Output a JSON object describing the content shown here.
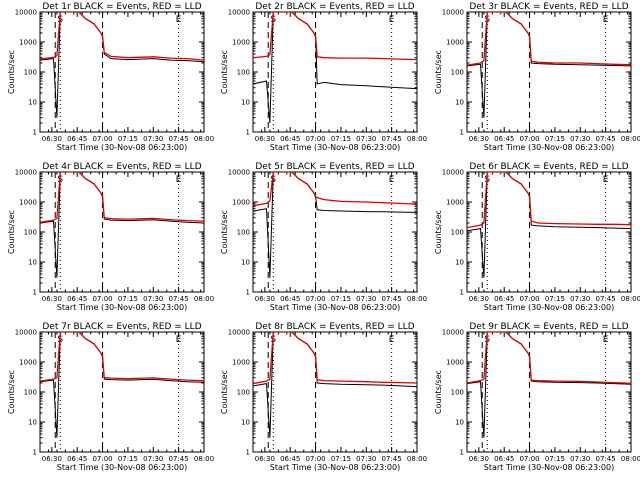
{
  "window": {
    "background": "#ffffff"
  },
  "styles": {
    "events_color": "#000000",
    "lld_color": "#e00000"
  },
  "chart_data": {
    "type": "line",
    "layout": "3x3 grid",
    "xlabel": "Start Time (30-Nov-08 06:23:00)",
    "ylabel": "Counts/sec",
    "yscale": "log",
    "ylim": [
      1,
      10000
    ],
    "xlim": [
      "06:23",
      "08:00"
    ],
    "x_ticks": [
      "06:30",
      "06:45",
      "07:00",
      "07:15",
      "07:30",
      "07:45",
      "08:00"
    ],
    "y_ticks": [
      "1",
      "10",
      "100",
      "1000",
      "10000"
    ],
    "legend_text": "BLACK = Events, RED = LLD",
    "series_names": [
      "Events",
      "LLD"
    ],
    "markers": [
      "S",
      "E"
    ],
    "panels": [
      {
        "title": "Det 1r BLACK = Events, RED = LLD",
        "xlabel": "Start Time (30-Nov-08 06:23:00)",
        "x": [
          "06:23",
          "06:31",
          "06:33",
          "06:35",
          "06:37",
          "06:43",
          "06:46",
          "06:50",
          "06:55",
          "06:59",
          "07:00",
          "07:01",
          "07:05",
          "07:15",
          "07:30",
          "07:40",
          "07:50",
          "08:00"
        ],
        "series": [
          {
            "name": "Events",
            "values": [
              250,
              280,
              3,
              10000,
              10000,
              10000,
              10000,
              6000,
              4000,
              2000,
              1500,
              400,
              280,
              260,
              280,
              250,
              240,
              220
            ]
          },
          {
            "name": "LLD",
            "values": [
              270,
              310,
              350,
              10000,
              10000,
              10000,
              10000,
              6000,
              4000,
              2000,
              1500,
              450,
              330,
              300,
              320,
              290,
              280,
              250
            ]
          }
        ]
      },
      {
        "title": "Det 2r BLACK = Events, RED = LLD",
        "xlabel": "Start Time (30-Nov-08 06:23:00)",
        "x": [
          "06:23",
          "06:31",
          "06:33",
          "06:35",
          "06:37",
          "06:43",
          "06:46",
          "06:50",
          "06:55",
          "06:59",
          "07:00",
          "07:01",
          "07:05",
          "07:15",
          "07:30",
          "07:40",
          "07:50",
          "08:00"
        ],
        "series": [
          {
            "name": "Events",
            "values": [
              40,
              50,
              2,
              10000,
              10000,
              10000,
              10000,
              6000,
              4000,
              2000,
              1500,
              40,
              45,
              38,
              35,
              32,
              30,
              28
            ]
          },
          {
            "name": "LLD",
            "values": [
              300,
              330,
              380,
              10000,
              10000,
              10000,
              10000,
              6000,
              4000,
              2000,
              1500,
              320,
              300,
              290,
              290,
              280,
              270,
              260
            ]
          }
        ]
      },
      {
        "title": "Det 3r BLACK = Events, RED = LLD",
        "xlabel": "Start Time (30-Nov-08 06:23:00)",
        "x": [
          "06:23",
          "06:31",
          "06:33",
          "06:35",
          "06:37",
          "06:43",
          "06:46",
          "06:50",
          "06:55",
          "06:59",
          "07:00",
          "07:01",
          "07:05",
          "07:15",
          "07:30",
          "07:40",
          "07:50",
          "08:00"
        ],
        "series": [
          {
            "name": "Events",
            "values": [
              160,
              180,
              3,
              10000,
              10000,
              10000,
              10000,
              6000,
              4000,
              2000,
              1500,
              200,
              190,
              180,
              175,
              170,
              165,
              160
            ]
          },
          {
            "name": "LLD",
            "values": [
              170,
              200,
              240,
              10000,
              10000,
              10000,
              10000,
              6000,
              4000,
              2000,
              1500,
              230,
              210,
              200,
              200,
              190,
              180,
              175
            ]
          }
        ]
      },
      {
        "title": "Det 4r BLACK = Events, RED = LLD",
        "xlabel": "Start Time (30-Nov-08 06:23:00)",
        "x": [
          "06:23",
          "06:31",
          "06:33",
          "06:35",
          "06:37",
          "06:43",
          "06:46",
          "06:50",
          "06:55",
          "06:59",
          "07:00",
          "07:01",
          "07:05",
          "07:15",
          "07:30",
          "07:40",
          "07:50",
          "08:00"
        ],
        "series": [
          {
            "name": "Events",
            "values": [
              200,
              230,
              3,
              10000,
              10000,
              10000,
              10000,
              6000,
              4000,
              2000,
              1500,
              270,
              250,
              240,
              255,
              230,
              210,
              200
            ]
          },
          {
            "name": "LLD",
            "values": [
              210,
              250,
              280,
              10000,
              10000,
              10000,
              10000,
              6000,
              4000,
              2000,
              1500,
              300,
              280,
              270,
              285,
              260,
              240,
              230
            ]
          }
        ]
      },
      {
        "title": "Det 5r BLACK = Events, RED = LLD",
        "xlabel": "Start Time (30-Nov-08 06:23:00)",
        "x": [
          "06:23",
          "06:31",
          "06:33",
          "06:35",
          "06:37",
          "06:43",
          "06:46",
          "06:50",
          "06:55",
          "06:59",
          "07:00",
          "07:01",
          "07:05",
          "07:15",
          "07:30",
          "07:40",
          "07:50",
          "08:00"
        ],
        "series": [
          {
            "name": "Events",
            "values": [
              500,
              600,
              3,
              10000,
              10000,
              10000,
              10000,
              6000,
              4000,
              2000,
              1500,
              550,
              520,
              500,
              480,
              470,
              460,
              450
            ]
          },
          {
            "name": "LLD",
            "values": [
              750,
              900,
              1100,
              10000,
              10000,
              10000,
              10000,
              6000,
              4000,
              2000,
              1500,
              1400,
              1200,
              1050,
              1000,
              950,
              900,
              850
            ]
          }
        ]
      },
      {
        "title": "Det 6r BLACK = Events, RED = LLD",
        "xlabel": "Start Time (30-Nov-08 06:23:00)",
        "x": [
          "06:23",
          "06:31",
          "06:33",
          "06:35",
          "06:37",
          "06:43",
          "06:46",
          "06:50",
          "06:55",
          "06:59",
          "07:00",
          "07:01",
          "07:05",
          "07:15",
          "07:30",
          "07:40",
          "07:50",
          "08:00"
        ],
        "series": [
          {
            "name": "Events",
            "values": [
              110,
              130,
              3,
              10000,
              10000,
              10000,
              10000,
              6000,
              4000,
              2000,
              1500,
              170,
              160,
              150,
              145,
              140,
              135,
              130
            ]
          },
          {
            "name": "LLD",
            "values": [
              140,
              170,
              200,
              10000,
              10000,
              10000,
              10000,
              6000,
              4000,
              2000,
              1500,
              230,
              200,
              190,
              185,
              180,
              180,
              175
            ]
          }
        ]
      },
      {
        "title": "Det 7r BLACK = Events, RED = LLD",
        "xlabel": "Start Time (30-Nov-08 06:23:00)",
        "x": [
          "06:23",
          "06:31",
          "06:33",
          "06:35",
          "06:37",
          "06:43",
          "06:46",
          "06:50",
          "06:55",
          "06:59",
          "07:00",
          "07:01",
          "07:05",
          "07:15",
          "07:30",
          "07:40",
          "07:50",
          "08:00"
        ],
        "series": [
          {
            "name": "Events",
            "values": [
              220,
              250,
              3,
              10000,
              10000,
              10000,
              10000,
              6000,
              4000,
              2000,
              1500,
              270,
              260,
              250,
              265,
              240,
              220,
              210
            ]
          },
          {
            "name": "LLD",
            "values": [
              230,
              270,
              300,
              10000,
              10000,
              10000,
              10000,
              6000,
              4000,
              2000,
              1500,
              300,
              290,
              280,
              295,
              270,
              250,
              240
            ]
          }
        ]
      },
      {
        "title": "Det 8r BLACK = Events, RED = LLD",
        "xlabel": "Start Time (30-Nov-08 06:23:00)",
        "x": [
          "06:23",
          "06:31",
          "06:33",
          "06:35",
          "06:37",
          "06:43",
          "06:46",
          "06:50",
          "06:55",
          "06:59",
          "07:00",
          "07:01",
          "07:05",
          "07:15",
          "07:30",
          "07:40",
          "07:50",
          "08:00"
        ],
        "series": [
          {
            "name": "Events",
            "values": [
              160,
              190,
              3,
              10000,
              10000,
              10000,
              10000,
              6000,
              4000,
              2000,
              1500,
              200,
              190,
              180,
              175,
              170,
              160,
              150
            ]
          },
          {
            "name": "LLD",
            "values": [
              190,
              230,
              270,
              10000,
              10000,
              10000,
              10000,
              6000,
              4000,
              2000,
              1500,
              260,
              240,
              230,
              220,
              210,
              205,
              200
            ]
          }
        ]
      },
      {
        "title": "Det 9r BLACK = Events, RED = LLD",
        "xlabel": "Start Time (30-Nov-08 06:23:00)",
        "x": [
          "06:23",
          "06:31",
          "06:33",
          "06:35",
          "06:37",
          "06:43",
          "06:46",
          "06:50",
          "06:55",
          "06:59",
          "07:00",
          "07:01",
          "07:05",
          "07:15",
          "07:30",
          "07:40",
          "07:50",
          "08:00"
        ],
        "series": [
          {
            "name": "Events",
            "values": [
              190,
              220,
              3,
              10000,
              10000,
              10000,
              10000,
              6000,
              4000,
              2000,
              1500,
              230,
              220,
              210,
              205,
              200,
              190,
              180
            ]
          },
          {
            "name": "LLD",
            "values": [
              200,
              240,
              270,
              10000,
              10000,
              10000,
              10000,
              6000,
              4000,
              2000,
              1500,
              250,
              240,
              230,
              225,
              215,
              205,
              195
            ]
          }
        ]
      }
    ]
  }
}
